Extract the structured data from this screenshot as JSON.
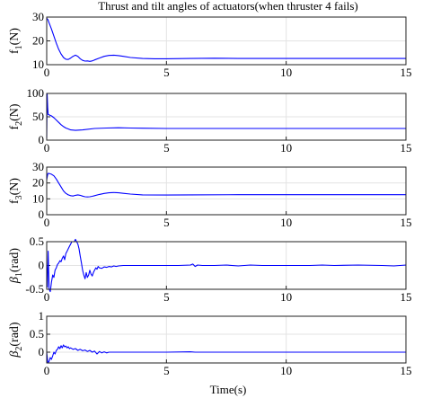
{
  "chart_data": {
    "type": "line",
    "title": "Thrust and tilt angles of actuators(when thruster 4 fails)",
    "xlabel": "Time(s)",
    "xlim": [
      0,
      15
    ],
    "xticks": [
      "0",
      "5",
      "10",
      "15"
    ],
    "grid": true,
    "line_color": "#0000ff",
    "panels": [
      {
        "ylabel": {
          "symbol": "f",
          "sub": "1",
          "unit": "(N)"
        },
        "ylim": [
          10,
          30
        ],
        "yticks": [
          "10",
          "20",
          "30"
        ],
        "series": [
          {
            "x": [
              0,
              0.05,
              0.1,
              0.2,
              0.3,
              0.4,
              0.5,
              0.6,
              0.7,
              0.8,
              0.9,
              1.0,
              1.1,
              1.2,
              1.3,
              1.4,
              1.5,
              1.6,
              1.7,
              1.8,
              1.9,
              2.0,
              2.2,
              2.4,
              2.6,
              2.8,
              3.0,
              3.2,
              3.5,
              4.0,
              4.5,
              5.0,
              6.0,
              7.0,
              8.0,
              10.0,
              12.0,
              15.0
            ],
            "y": [
              29.5,
              29,
              27.5,
              25,
              22,
              19,
              16.5,
              14.5,
              13,
              12.3,
              12.2,
              12.8,
              13.5,
              14,
              13.5,
              12.5,
              11.8,
              11.5,
              11.6,
              11.4,
              11.6,
              12,
              12.8,
              13.5,
              13.9,
              14,
              13.8,
              13.5,
              13,
              12.6,
              12.5,
              12.5,
              12.6,
              12.7,
              12.6,
              12.6,
              12.6,
              12.6
            ]
          }
        ]
      },
      {
        "ylabel": {
          "symbol": "f",
          "sub": "2",
          "unit": "(N)"
        },
        "ylim": [
          0,
          100
        ],
        "yticks": [
          "0",
          "50",
          "100"
        ],
        "series": [
          {
            "x": [
              0,
              0.02,
              0.04,
              0.06,
              0.08,
              0.1,
              0.2,
              0.3,
              0.4,
              0.5,
              0.6,
              0.7,
              0.8,
              0.9,
              1.0,
              1.2,
              1.5,
              2.0,
              2.5,
              3.0,
              3.5,
              4.0,
              5.0,
              6.0,
              8.0,
              10.0,
              12.0,
              15.0
            ],
            "y": [
              5,
              100,
              70,
              55,
              55,
              54,
              52,
              48,
              43,
              38,
              33,
              29,
              26,
              24,
              22,
              21,
              22,
              25,
              26,
              26.5,
              26,
              25.5,
              25,
              25,
              25,
              25,
              25,
              25
            ]
          }
        ]
      },
      {
        "ylabel": {
          "symbol": "f",
          "sub": "3",
          "unit": "(N)"
        },
        "ylim": [
          0,
          30
        ],
        "yticks": [
          "0",
          "10",
          "20",
          "30"
        ],
        "series": [
          {
            "x": [
              0,
              0.05,
              0.1,
              0.2,
              0.3,
              0.4,
              0.5,
              0.6,
              0.7,
              0.8,
              0.9,
              1.0,
              1.1,
              1.2,
              1.3,
              1.4,
              1.5,
              1.6,
              1.7,
              1.8,
              1.9,
              2.0,
              2.2,
              2.4,
              2.6,
              2.8,
              3.0,
              3.2,
              3.5,
              4.0,
              5.0,
              6.0,
              8.0,
              10.0,
              12.0,
              15.0
            ],
            "y": [
              22,
              26,
              26,
              25.5,
              24.5,
              22.5,
              20,
              17.5,
              15,
              13.5,
              12.5,
              12,
              11.8,
              12.2,
              12.5,
              12.2,
              11.7,
              11.3,
              11.2,
              11.3,
              11.6,
              12,
              12.8,
              13.4,
              13.8,
              14,
              13.8,
              13.5,
              13,
              12.5,
              12.4,
              12.5,
              12.6,
              12.6,
              12.6,
              12.6
            ]
          }
        ]
      },
      {
        "ylabel": {
          "symbol": "β",
          "sub": "1",
          "unit": "(rad)"
        },
        "ylim": [
          -0.5,
          0.5
        ],
        "yticks": [
          "-0.5",
          "0",
          "0.5"
        ],
        "series": [
          {
            "x": [
              0,
              0.03,
              0.06,
              0.1,
              0.15,
              0.2,
              0.25,
              0.3,
              0.35,
              0.4,
              0.45,
              0.5,
              0.55,
              0.6,
              0.65,
              0.7,
              0.75,
              0.8,
              0.85,
              0.9,
              0.95,
              1.0,
              1.05,
              1.1,
              1.15,
              1.2,
              1.25,
              1.3,
              1.35,
              1.4,
              1.45,
              1.5,
              1.55,
              1.6,
              1.65,
              1.7,
              1.75,
              1.8,
              1.85,
              1.9,
              1.95,
              2.0,
              2.05,
              2.1,
              2.15,
              2.2,
              2.3,
              2.4,
              2.5,
              2.6,
              2.7,
              2.8,
              2.9,
              3.0,
              3.2,
              3.4,
              3.6,
              3.8,
              4.0,
              4.5,
              5.0,
              5.5,
              6.0,
              6.1,
              6.2,
              6.3,
              6.5,
              7.0,
              7.5,
              8.0,
              8.5,
              9.0,
              10.0,
              11.0,
              11.5,
              12.0,
              13.0,
              14.0,
              14.5,
              15.0
            ],
            "y": [
              0,
              -0.45,
              0.3,
              -0.5,
              -0.55,
              -0.35,
              -0.2,
              -0.25,
              -0.1,
              -0.05,
              0.02,
              0.05,
              0.1,
              0.08,
              0.15,
              0.2,
              0.12,
              0.25,
              0.3,
              0.35,
              0.4,
              0.45,
              0.5,
              0.5,
              0.5,
              0.55,
              0.5,
              0.45,
              0.35,
              0.2,
              0.05,
              -0.1,
              -0.2,
              -0.28,
              -0.15,
              -0.25,
              -0.2,
              -0.1,
              -0.18,
              -0.22,
              -0.15,
              -0.1,
              -0.05,
              -0.08,
              -0.02,
              -0.05,
              -0.06,
              -0.03,
              -0.04,
              -0.02,
              -0.03,
              -0.01,
              -0.02,
              -0.01,
              0,
              0,
              0,
              0,
              0,
              0,
              0,
              0,
              0.01,
              0.03,
              -0.02,
              0.01,
              0,
              0,
              0.01,
              -0.01,
              0.01,
              0,
              0,
              0,
              0.01,
              0,
              0.01,
              0,
              -0.01,
              0.01
            ]
          }
        ]
      },
      {
        "ylabel": {
          "symbol": "β",
          "sub": "2",
          "unit": "(rad)"
        },
        "ylim": [
          -0.3,
          1
        ],
        "yticks": [
          "0",
          "0.5",
          "1"
        ],
        "series": [
          {
            "x": [
              0,
              0.05,
              0.1,
              0.15,
              0.2,
              0.25,
              0.3,
              0.35,
              0.4,
              0.45,
              0.5,
              0.55,
              0.6,
              0.65,
              0.7,
              0.75,
              0.8,
              0.85,
              0.9,
              0.95,
              1.0,
              1.1,
              1.2,
              1.3,
              1.4,
              1.5,
              1.6,
              1.7,
              1.8,
              1.9,
              2.0,
              2.1,
              2.2,
              2.3,
              2.4,
              2.5,
              2.6,
              2.8,
              3.0,
              3.5,
              4.0,
              5.0,
              6.0,
              6.2,
              7.0,
              8.0,
              10.0,
              12.0,
              15.0
            ],
            "y": [
              0,
              -0.3,
              -0.25,
              -0.15,
              -0.2,
              -0.1,
              0,
              -0.05,
              0.05,
              0.08,
              0.15,
              0.1,
              0.18,
              0.12,
              0.2,
              0.15,
              0.17,
              0.12,
              0.15,
              0.1,
              0.12,
              0.08,
              0.1,
              0.05,
              0.08,
              0.04,
              0.06,
              0.02,
              0.05,
              0,
              0.03,
              -0.05,
              0.02,
              -0.02,
              0.01,
              -0.02,
              0,
              0,
              0,
              0,
              0,
              0,
              0.01,
              0,
              0,
              0,
              0,
              0,
              0
            ]
          }
        ]
      }
    ]
  }
}
